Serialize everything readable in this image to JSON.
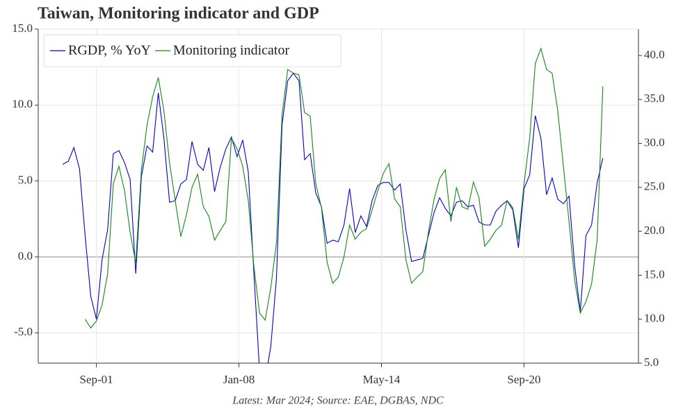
{
  "chart_data": {
    "type": "line",
    "title": "Taiwan, Monitoring indicator and GDP",
    "footnote": "Latest: Mar 2024; Source: EAE, DGBAS, NDC",
    "x": [
      "2000-03",
      "2000-06",
      "2000-09",
      "2000-12",
      "2001-03",
      "2001-06",
      "2001-09",
      "2001-12",
      "2002-03",
      "2002-06",
      "2002-09",
      "2002-12",
      "2003-03",
      "2003-06",
      "2003-09",
      "2003-12",
      "2004-03",
      "2004-06",
      "2004-09",
      "2004-12",
      "2005-03",
      "2005-06",
      "2005-09",
      "2005-12",
      "2006-03",
      "2006-06",
      "2006-09",
      "2006-12",
      "2007-03",
      "2007-06",
      "2007-09",
      "2007-12",
      "2008-03",
      "2008-06",
      "2008-09",
      "2008-12",
      "2009-03",
      "2009-06",
      "2009-09",
      "2009-12",
      "2010-03",
      "2010-06",
      "2010-09",
      "2010-12",
      "2011-03",
      "2011-06",
      "2011-09",
      "2011-12",
      "2012-03",
      "2012-06",
      "2012-09",
      "2012-12",
      "2013-03",
      "2013-06",
      "2013-09",
      "2013-12",
      "2014-03",
      "2014-06",
      "2014-09",
      "2014-12",
      "2015-03",
      "2015-06",
      "2015-09",
      "2015-12",
      "2016-03",
      "2016-06",
      "2016-09",
      "2016-12",
      "2017-03",
      "2017-06",
      "2017-09",
      "2017-12",
      "2018-03",
      "2018-06",
      "2018-09",
      "2018-12",
      "2019-03",
      "2019-06",
      "2019-09",
      "2019-12",
      "2020-03",
      "2020-06",
      "2020-09",
      "2020-12",
      "2021-03",
      "2021-06",
      "2021-09",
      "2021-12",
      "2022-03",
      "2022-06",
      "2022-09",
      "2022-12",
      "2023-03",
      "2023-06",
      "2023-09",
      "2023-12",
      "2024-03"
    ],
    "xlim": [
      "1999-02",
      "2025-10"
    ],
    "xticks": [
      {
        "value": "2001-09",
        "label": "Sep-01"
      },
      {
        "value": "2008-01",
        "label": "Jan-08"
      },
      {
        "value": "2014-05",
        "label": "May-14"
      },
      {
        "value": "2020-09",
        "label": "Sep-20"
      }
    ],
    "ylim": [
      -7,
      15
    ],
    "yticks": [
      {
        "value": 15,
        "label": "15.0"
      },
      {
        "value": 10,
        "label": "10.0"
      },
      {
        "value": 5,
        "label": "5.0"
      },
      {
        "value": 0,
        "label": "0.0"
      },
      {
        "value": -5,
        "label": "-5.0"
      }
    ],
    "y2lim": [
      5,
      43
    ],
    "y2ticks": [
      {
        "value": 5,
        "label": "5.0"
      },
      {
        "value": 10,
        "label": "10.0"
      },
      {
        "value": 15,
        "label": "15.0"
      },
      {
        "value": 20,
        "label": "20.0"
      },
      {
        "value": 25,
        "label": "25.0"
      },
      {
        "value": 30,
        "label": "30.0"
      },
      {
        "value": 35,
        "label": "35.0"
      },
      {
        "value": 40,
        "label": "40.0"
      }
    ],
    "grid": true,
    "legend": "upper left",
    "series": [
      {
        "name": "RGDP, % YoY",
        "color": "#0000cc",
        "values": [
          6.1,
          6.3,
          7.2,
          5.8,
          1.4,
          -2.6,
          -4.1,
          -0.2,
          1.8,
          6.8,
          7.0,
          6.2,
          5.1,
          -1.1,
          5.3,
          7.3,
          6.9,
          10.8,
          7.8,
          3.6,
          3.7,
          4.8,
          5.1,
          7.6,
          6.1,
          5.7,
          7.2,
          4.3,
          5.9,
          7.1,
          7.9,
          6.6,
          7.7,
          5.6,
          -1.1,
          -7.5,
          -8.1,
          -5.9,
          -1.4,
          8.7,
          11.6,
          12.1,
          11.6,
          6.4,
          6.8,
          4.2,
          3.3,
          0.9,
          1.1,
          1.0,
          2.1,
          4.5,
          1.6,
          2.7,
          2.0,
          3.7,
          4.7,
          4.9,
          4.9,
          4.4,
          4.8,
          1.8,
          -0.3,
          -0.2,
          -0.1,
          1.4,
          2.9,
          3.9,
          3.2,
          2.7,
          3.6,
          3.7,
          3.3,
          3.4,
          2.3,
          2.1,
          2.1,
          3.0,
          3.4,
          3.7,
          3.1,
          0.6,
          4.5,
          5.4,
          9.3,
          7.8,
          4.1,
          5.2,
          3.8,
          3.5,
          4.0,
          -0.6,
          -3.6,
          1.4,
          2.1,
          4.9,
          6.5
        ]
      },
      {
        "name": "Monitoring indicator",
        "color": "#118811",
        "axis": "y2",
        "values": [
          null,
          null,
          null,
          null,
          10.0,
          9.0,
          9.8,
          11.6,
          15.2,
          25.4,
          27.4,
          24.6,
          19.9,
          16.4,
          27.0,
          32.1,
          35.3,
          37.5,
          33.7,
          27.8,
          23.5,
          19.4,
          21.9,
          25.0,
          26.5,
          22.8,
          21.7,
          19.0,
          20.1,
          21.1,
          30.6,
          29.4,
          27.4,
          23.5,
          16.0,
          10.7,
          9.9,
          13.6,
          18.7,
          33.3,
          38.4,
          38.0,
          37.8,
          33.5,
          33.1,
          25.4,
          22.7,
          16.5,
          14.1,
          14.8,
          17.1,
          20.7,
          19.1,
          19.9,
          20.3,
          22.4,
          24.6,
          26.6,
          27.7,
          23.7,
          22.8,
          16.8,
          14.1,
          14.8,
          15.4,
          19.9,
          23.6,
          26.0,
          27.0,
          21.1,
          25.0,
          22.8,
          22.5,
          25.6,
          23.8,
          18.3,
          19.1,
          20.1,
          20.7,
          23.5,
          22.7,
          19.1,
          25.4,
          30.6,
          39.1,
          40.8,
          38.4,
          38.0,
          33.7,
          27.4,
          21.1,
          14.4,
          10.7,
          12.0,
          14.0,
          19.1,
          36.5
        ]
      }
    ]
  }
}
